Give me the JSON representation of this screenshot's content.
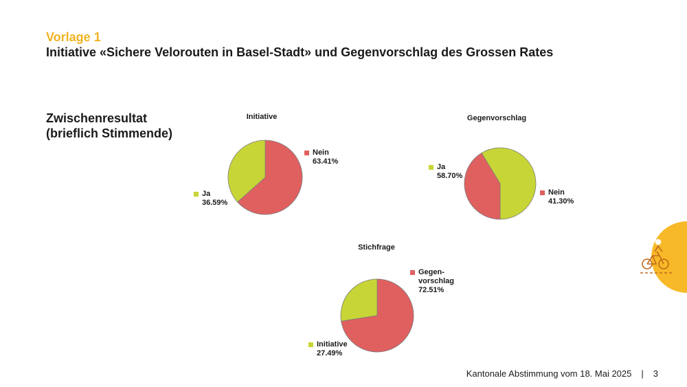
{
  "header": {
    "kicker": "Vorlage 1",
    "title": "Initiative «Sichere Velorouten in Basel-Stadt» und Gegenvorschlag des Grossen Rates"
  },
  "subtitle": {
    "line1": "Zwischenresultat",
    "line2": "(brieflich Stimmende)"
  },
  "colors": {
    "ja": "#c8d536",
    "nein": "#e06060",
    "accent": "#f7b928"
  },
  "chart_data": [
    {
      "type": "pie",
      "title": "Initiative",
      "slices": [
        {
          "label": "Nein",
          "value_label": "63.41%",
          "value": 63.41,
          "color": "#e06060"
        },
        {
          "label": "Ja",
          "value_label": "36.59%",
          "value": 36.59,
          "color": "#c8d536"
        }
      ]
    },
    {
      "type": "pie",
      "title": "Gegenvorschlag",
      "slices": [
        {
          "label": "Nein",
          "value_label": "41.30%",
          "value": 41.3,
          "color": "#e06060"
        },
        {
          "label": "Ja",
          "value_label": "58.70%",
          "value": 58.7,
          "color": "#c8d536"
        }
      ]
    },
    {
      "type": "pie",
      "title": "Stichfrage",
      "slices": [
        {
          "label": "Gegen-",
          "label2": "vorschlag",
          "value_label": "72.51%",
          "value": 72.51,
          "color": "#e06060"
        },
        {
          "label": "Initiative",
          "value_label": "27.49%",
          "value": 27.49,
          "color": "#c8d536"
        }
      ]
    }
  ],
  "footer": {
    "text": "Kantonale Abstimmung vom 18. Mai 2025",
    "separator": "|",
    "page": "3"
  },
  "decoration": {
    "icon": "cyclist-icon"
  }
}
